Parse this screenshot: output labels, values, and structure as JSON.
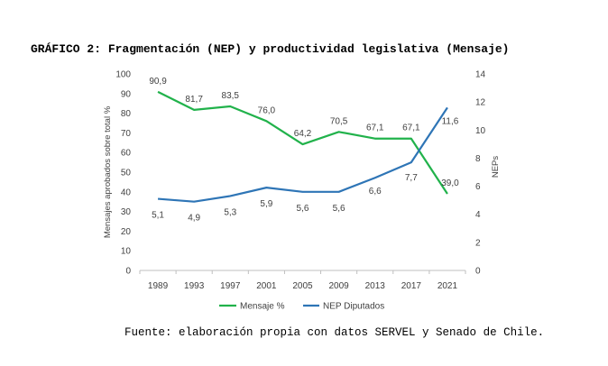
{
  "figure_title": "GRÁFICO 2: Fragmentación (NEP) y productividad legislativa (Mensaje)",
  "source_note": "Fuente: elaboración propia con datos SERVEL y Senado de Chile.",
  "chart_data": {
    "type": "line",
    "categories": [
      "1989",
      "1993",
      "1997",
      "2001",
      "2005",
      "2009",
      "2013",
      "2017",
      "2021"
    ],
    "ylabel": "Mensajes aprobados sobre total %",
    "y2label": "NEPs",
    "ylim": [
      0,
      100
    ],
    "y2lim": [
      0,
      14
    ],
    "yticks": [
      "0",
      "10",
      "20",
      "30",
      "40",
      "50",
      "60",
      "70",
      "80",
      "90",
      "100"
    ],
    "y2ticks": [
      "0",
      "2",
      "4",
      "6",
      "8",
      "10",
      "12",
      "14"
    ],
    "legend_position": "bottom",
    "grid": false,
    "series": [
      {
        "name": "Mensaje %",
        "axis": "left",
        "color": "#21b24b",
        "values": [
          90.9,
          81.7,
          83.5,
          76.0,
          64.2,
          70.5,
          67.1,
          67.1,
          39.0
        ],
        "labels": [
          "90,9",
          "81,7",
          "83,5",
          "76,0",
          "64,2",
          "70,5",
          "67,1",
          "67,1",
          "39,0"
        ]
      },
      {
        "name": "NEP Diputados",
        "axis": "right",
        "color": "#2e75b6",
        "values": [
          5.1,
          4.9,
          5.3,
          5.9,
          5.6,
          5.6,
          6.6,
          7.7,
          11.6
        ],
        "labels": [
          "5,1",
          "4,9",
          "5,3",
          "5,9",
          "5,6",
          "5,6",
          "6,6",
          "7,7",
          "11,6"
        ]
      }
    ]
  }
}
